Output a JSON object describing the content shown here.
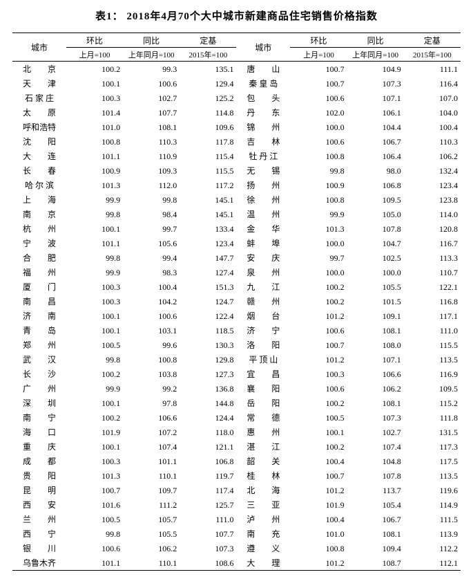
{
  "title": "表1： 2018年4月70个大中城市新建商品住宅销售价格指数",
  "headers": {
    "city": "城市",
    "mom": "环比",
    "yoy": "同比",
    "base": "定基",
    "mom_sub": "上月=100",
    "yoy_sub": "上年同月=100",
    "base_sub": "2015年=100"
  },
  "colors": {
    "text": "#000000",
    "background": "#ffffff",
    "border": "#000000"
  },
  "left": [
    {
      "city": "北　　京",
      "mom": "100.2",
      "yoy": "99.3",
      "base": "135.1"
    },
    {
      "city": "天　　津",
      "mom": "100.1",
      "yoy": "100.6",
      "base": "129.4"
    },
    {
      "city": "石 家 庄",
      "mom": "100.3",
      "yoy": "102.7",
      "base": "125.2"
    },
    {
      "city": "太　　原",
      "mom": "101.4",
      "yoy": "107.7",
      "base": "114.8"
    },
    {
      "city": "呼和浩特",
      "mom": "101.0",
      "yoy": "108.1",
      "base": "109.6"
    },
    {
      "city": "沈　　阳",
      "mom": "100.8",
      "yoy": "110.3",
      "base": "117.8"
    },
    {
      "city": "大　　连",
      "mom": "101.1",
      "yoy": "110.9",
      "base": "115.4"
    },
    {
      "city": "长　　春",
      "mom": "100.9",
      "yoy": "109.3",
      "base": "115.5"
    },
    {
      "city": "哈 尔 滨",
      "mom": "101.3",
      "yoy": "112.0",
      "base": "117.2"
    },
    {
      "city": "上　　海",
      "mom": "99.9",
      "yoy": "99.8",
      "base": "145.1"
    },
    {
      "city": "南　　京",
      "mom": "99.8",
      "yoy": "98.4",
      "base": "145.1"
    },
    {
      "city": "杭　　州",
      "mom": "100.1",
      "yoy": "99.7",
      "base": "133.4"
    },
    {
      "city": "宁　　波",
      "mom": "101.1",
      "yoy": "105.6",
      "base": "123.4"
    },
    {
      "city": "合　　肥",
      "mom": "99.8",
      "yoy": "99.4",
      "base": "147.7"
    },
    {
      "city": "福　　州",
      "mom": "99.9",
      "yoy": "98.3",
      "base": "127.4"
    },
    {
      "city": "厦　　门",
      "mom": "100.3",
      "yoy": "100.4",
      "base": "151.3"
    },
    {
      "city": "南　　昌",
      "mom": "100.3",
      "yoy": "104.2",
      "base": "124.7"
    },
    {
      "city": "济　　南",
      "mom": "100.1",
      "yoy": "100.6",
      "base": "122.4"
    },
    {
      "city": "青　　岛",
      "mom": "100.1",
      "yoy": "103.1",
      "base": "118.5"
    },
    {
      "city": "郑　　州",
      "mom": "100.5",
      "yoy": "99.6",
      "base": "130.3"
    },
    {
      "city": "武　　汉",
      "mom": "99.8",
      "yoy": "100.8",
      "base": "129.8"
    },
    {
      "city": "长　　沙",
      "mom": "100.2",
      "yoy": "103.8",
      "base": "127.3"
    },
    {
      "city": "广　　州",
      "mom": "99.9",
      "yoy": "99.2",
      "base": "136.8"
    },
    {
      "city": "深　　圳",
      "mom": "100.1",
      "yoy": "97.8",
      "base": "144.8"
    },
    {
      "city": "南　　宁",
      "mom": "100.2",
      "yoy": "106.6",
      "base": "124.4"
    },
    {
      "city": "海　　口",
      "mom": "101.9",
      "yoy": "107.2",
      "base": "118.0"
    },
    {
      "city": "重　　庆",
      "mom": "100.1",
      "yoy": "107.4",
      "base": "121.1"
    },
    {
      "city": "成　　都",
      "mom": "100.3",
      "yoy": "101.1",
      "base": "106.8"
    },
    {
      "city": "贵　　阳",
      "mom": "101.3",
      "yoy": "110.1",
      "base": "119.7"
    },
    {
      "city": "昆　　明",
      "mom": "100.7",
      "yoy": "109.7",
      "base": "117.4"
    },
    {
      "city": "西　　安",
      "mom": "101.6",
      "yoy": "111.2",
      "base": "125.7"
    },
    {
      "city": "兰　　州",
      "mom": "100.5",
      "yoy": "105.7",
      "base": "111.0"
    },
    {
      "city": "西　　宁",
      "mom": "99.8",
      "yoy": "105.5",
      "base": "107.7"
    },
    {
      "city": "银　　川",
      "mom": "100.6",
      "yoy": "106.2",
      "base": "107.3"
    },
    {
      "city": "乌鲁木齐",
      "mom": "101.1",
      "yoy": "110.1",
      "base": "108.6"
    }
  ],
  "right": [
    {
      "city": "唐　　山",
      "mom": "100.7",
      "yoy": "104.9",
      "base": "111.1"
    },
    {
      "city": "秦 皇 岛",
      "mom": "100.7",
      "yoy": "107.3",
      "base": "116.4"
    },
    {
      "city": "包　　头",
      "mom": "100.6",
      "yoy": "107.1",
      "base": "107.0"
    },
    {
      "city": "丹　　东",
      "mom": "102.0",
      "yoy": "106.1",
      "base": "104.0"
    },
    {
      "city": "锦　　州",
      "mom": "100.0",
      "yoy": "104.4",
      "base": "100.4"
    },
    {
      "city": "吉　　林",
      "mom": "100.6",
      "yoy": "106.7",
      "base": "110.3"
    },
    {
      "city": "牡 丹 江",
      "mom": "100.8",
      "yoy": "106.4",
      "base": "106.2"
    },
    {
      "city": "无　　锡",
      "mom": "99.8",
      "yoy": "98.0",
      "base": "132.4"
    },
    {
      "city": "扬　　州",
      "mom": "100.9",
      "yoy": "106.8",
      "base": "123.4"
    },
    {
      "city": "徐　　州",
      "mom": "100.8",
      "yoy": "109.5",
      "base": "123.8"
    },
    {
      "city": "温　　州",
      "mom": "99.9",
      "yoy": "105.0",
      "base": "114.0"
    },
    {
      "city": "金　　华",
      "mom": "101.3",
      "yoy": "107.8",
      "base": "120.8"
    },
    {
      "city": "蚌　　埠",
      "mom": "100.0",
      "yoy": "104.7",
      "base": "116.7"
    },
    {
      "city": "安　　庆",
      "mom": "99.7",
      "yoy": "102.5",
      "base": "113.3"
    },
    {
      "city": "泉　　州",
      "mom": "100.0",
      "yoy": "100.0",
      "base": "110.7"
    },
    {
      "city": "九　　江",
      "mom": "100.2",
      "yoy": "105.5",
      "base": "122.1"
    },
    {
      "city": "赣　　州",
      "mom": "100.2",
      "yoy": "101.5",
      "base": "116.8"
    },
    {
      "city": "烟　　台",
      "mom": "101.2",
      "yoy": "109.1",
      "base": "117.1"
    },
    {
      "city": "济　　宁",
      "mom": "100.6",
      "yoy": "108.1",
      "base": "111.0"
    },
    {
      "city": "洛　　阳",
      "mom": "100.7",
      "yoy": "108.0",
      "base": "115.5"
    },
    {
      "city": "平 顶 山",
      "mom": "101.2",
      "yoy": "107.1",
      "base": "113.5"
    },
    {
      "city": "宜　　昌",
      "mom": "100.3",
      "yoy": "106.6",
      "base": "116.9"
    },
    {
      "city": "襄　　阳",
      "mom": "100.6",
      "yoy": "106.2",
      "base": "109.5"
    },
    {
      "city": "岳　　阳",
      "mom": "100.2",
      "yoy": "108.1",
      "base": "115.2"
    },
    {
      "city": "常　　德",
      "mom": "100.5",
      "yoy": "107.3",
      "base": "111.8"
    },
    {
      "city": "惠　　州",
      "mom": "100.1",
      "yoy": "102.7",
      "base": "131.5"
    },
    {
      "city": "湛　　江",
      "mom": "100.2",
      "yoy": "107.4",
      "base": "117.3"
    },
    {
      "city": "韶　　关",
      "mom": "100.4",
      "yoy": "104.8",
      "base": "117.5"
    },
    {
      "city": "桂　　林",
      "mom": "100.7",
      "yoy": "107.8",
      "base": "113.5"
    },
    {
      "city": "北　　海",
      "mom": "101.2",
      "yoy": "113.7",
      "base": "119.6"
    },
    {
      "city": "三　　亚",
      "mom": "101.9",
      "yoy": "105.4",
      "base": "114.9"
    },
    {
      "city": "泸　　州",
      "mom": "100.4",
      "yoy": "106.7",
      "base": "111.5"
    },
    {
      "city": "南　　充",
      "mom": "101.0",
      "yoy": "108.1",
      "base": "113.9"
    },
    {
      "city": "遵　　义",
      "mom": "100.8",
      "yoy": "109.4",
      "base": "112.2"
    },
    {
      "city": "大　　理",
      "mom": "101.2",
      "yoy": "108.7",
      "base": "112.1"
    }
  ]
}
